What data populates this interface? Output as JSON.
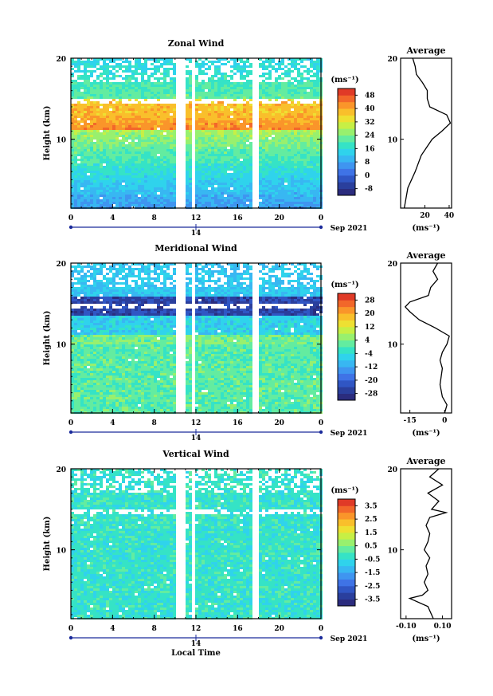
{
  "figure": {
    "date_label": "Sep 2021",
    "day_label": "14",
    "xlabel": "Local Time",
    "ylabel": "Height (km)",
    "unit": "(ms⁻¹)",
    "avg_title": "Average"
  },
  "chart_data": [
    {
      "type": "heatmap",
      "title": "Zonal Wind",
      "xlabel": "Local Time",
      "ylabel": "Height (km)",
      "x_ticks": [
        "0",
        "4",
        "8",
        "12",
        "16",
        "20",
        "0"
      ],
      "xlim": [
        0,
        24
      ],
      "ylim": [
        1.5,
        20
      ],
      "y_ticks": [
        "10",
        "20"
      ],
      "colorbar": {
        "unit": "(ms⁻¹)",
        "ticks": [
          "-8",
          "0",
          "8",
          "16",
          "24",
          "32",
          "40",
          "48"
        ],
        "range": [
          -12,
          52
        ]
      },
      "data_gaps_hours": [
        [
          10.0,
          11.0
        ],
        [
          11.5,
          12.0
        ],
        [
          17.5,
          18.0
        ]
      ],
      "profile": [
        [
          1.5,
          3
        ],
        [
          4,
          6
        ],
        [
          6,
          12
        ],
        [
          8,
          17
        ],
        [
          10,
          26
        ],
        [
          11,
          34
        ],
        [
          12,
          41
        ],
        [
          13,
          38
        ],
        [
          14,
          24
        ],
        [
          15,
          22
        ],
        [
          16,
          22
        ],
        [
          17,
          18
        ],
        [
          18,
          13
        ],
        [
          19,
          12
        ],
        [
          20,
          10
        ]
      ],
      "average": {
        "title": "Average",
        "xlabel": "(ms⁻¹)",
        "x_ticks": [
          "20",
          "40"
        ],
        "xlim": [
          0,
          42
        ]
      }
    },
    {
      "type": "heatmap",
      "title": "Meridional Wind",
      "xlabel": "Local Time",
      "ylabel": "Height (km)",
      "x_ticks": [
        "0",
        "4",
        "8",
        "12",
        "16",
        "20",
        "0"
      ],
      "xlim": [
        0,
        24
      ],
      "ylim": [
        1.5,
        20
      ],
      "y_ticks": [
        "10",
        "20"
      ],
      "colorbar": {
        "unit": "(ms⁻¹)",
        "ticks": [
          "-28",
          "-20",
          "-12",
          "-4",
          "4",
          "12",
          "20",
          "28"
        ],
        "range": [
          -32,
          32
        ]
      },
      "data_gaps_hours": [
        [
          10.0,
          11.0
        ],
        [
          11.5,
          12.0
        ],
        [
          17.5,
          18.0
        ]
      ],
      "profile": [
        [
          1.5,
          0
        ],
        [
          2.5,
          1
        ],
        [
          3.5,
          -1
        ],
        [
          5,
          -2
        ],
        [
          7,
          -1
        ],
        [
          8,
          -2
        ],
        [
          9,
          -1
        ],
        [
          10,
          1
        ],
        [
          11,
          2
        ],
        [
          12,
          -4
        ],
        [
          13,
          -11
        ],
        [
          14,
          -15
        ],
        [
          14.6,
          -17
        ],
        [
          15.2,
          -15
        ],
        [
          16,
          -7
        ],
        [
          17,
          -6
        ],
        [
          18,
          -3
        ],
        [
          19,
          -5
        ],
        [
          20,
          -3
        ]
      ],
      "average": {
        "title": "Average",
        "xlabel": "(ms⁻¹)",
        "x_ticks": [
          "-15",
          "0"
        ],
        "xlim": [
          -19,
          3
        ]
      }
    },
    {
      "type": "heatmap",
      "title": "Vertical Wind",
      "xlabel": "Local Time",
      "ylabel": "Height (km)",
      "x_ticks": [
        "0",
        "4",
        "8",
        "12",
        "16",
        "20",
        "0"
      ],
      "xlim": [
        0,
        24
      ],
      "ylim": [
        1.5,
        20
      ],
      "y_ticks": [
        "10",
        "20"
      ],
      "colorbar": {
        "unit": "(ms⁻¹)",
        "ticks": [
          "-3.5",
          "-2.5",
          "-1.5",
          "-0.5",
          "0.5",
          "1.5",
          "2.5",
          "3.5"
        ],
        "range": [
          -4,
          4
        ]
      },
      "data_gaps_hours": [
        [
          10.0,
          11.0
        ],
        [
          11.5,
          12.0
        ],
        [
          17.5,
          18.0
        ]
      ],
      "profile": [
        [
          1.5,
          0.05
        ],
        [
          3,
          0.02
        ],
        [
          4,
          -0.08
        ],
        [
          4.4,
          -0.01
        ],
        [
          5,
          0.02
        ],
        [
          6,
          0.0
        ],
        [
          7,
          0.02
        ],
        [
          8,
          0.01
        ],
        [
          9,
          0.03
        ],
        [
          10,
          0.0
        ],
        [
          11,
          0.02
        ],
        [
          12,
          0.03
        ],
        [
          13,
          0.01
        ],
        [
          14,
          0.03
        ],
        [
          14.6,
          0.12
        ],
        [
          15,
          0.04
        ],
        [
          16,
          0.08
        ],
        [
          17,
          0.02
        ],
        [
          18,
          0.1
        ],
        [
          19,
          0.03
        ],
        [
          20,
          0.08
        ]
      ],
      "average": {
        "title": "Average",
        "xlabel": "(ms⁻¹)",
        "x_ticks": [
          "-0.10",
          "0.10"
        ],
        "xlim": [
          -0.13,
          0.15
        ]
      }
    }
  ]
}
